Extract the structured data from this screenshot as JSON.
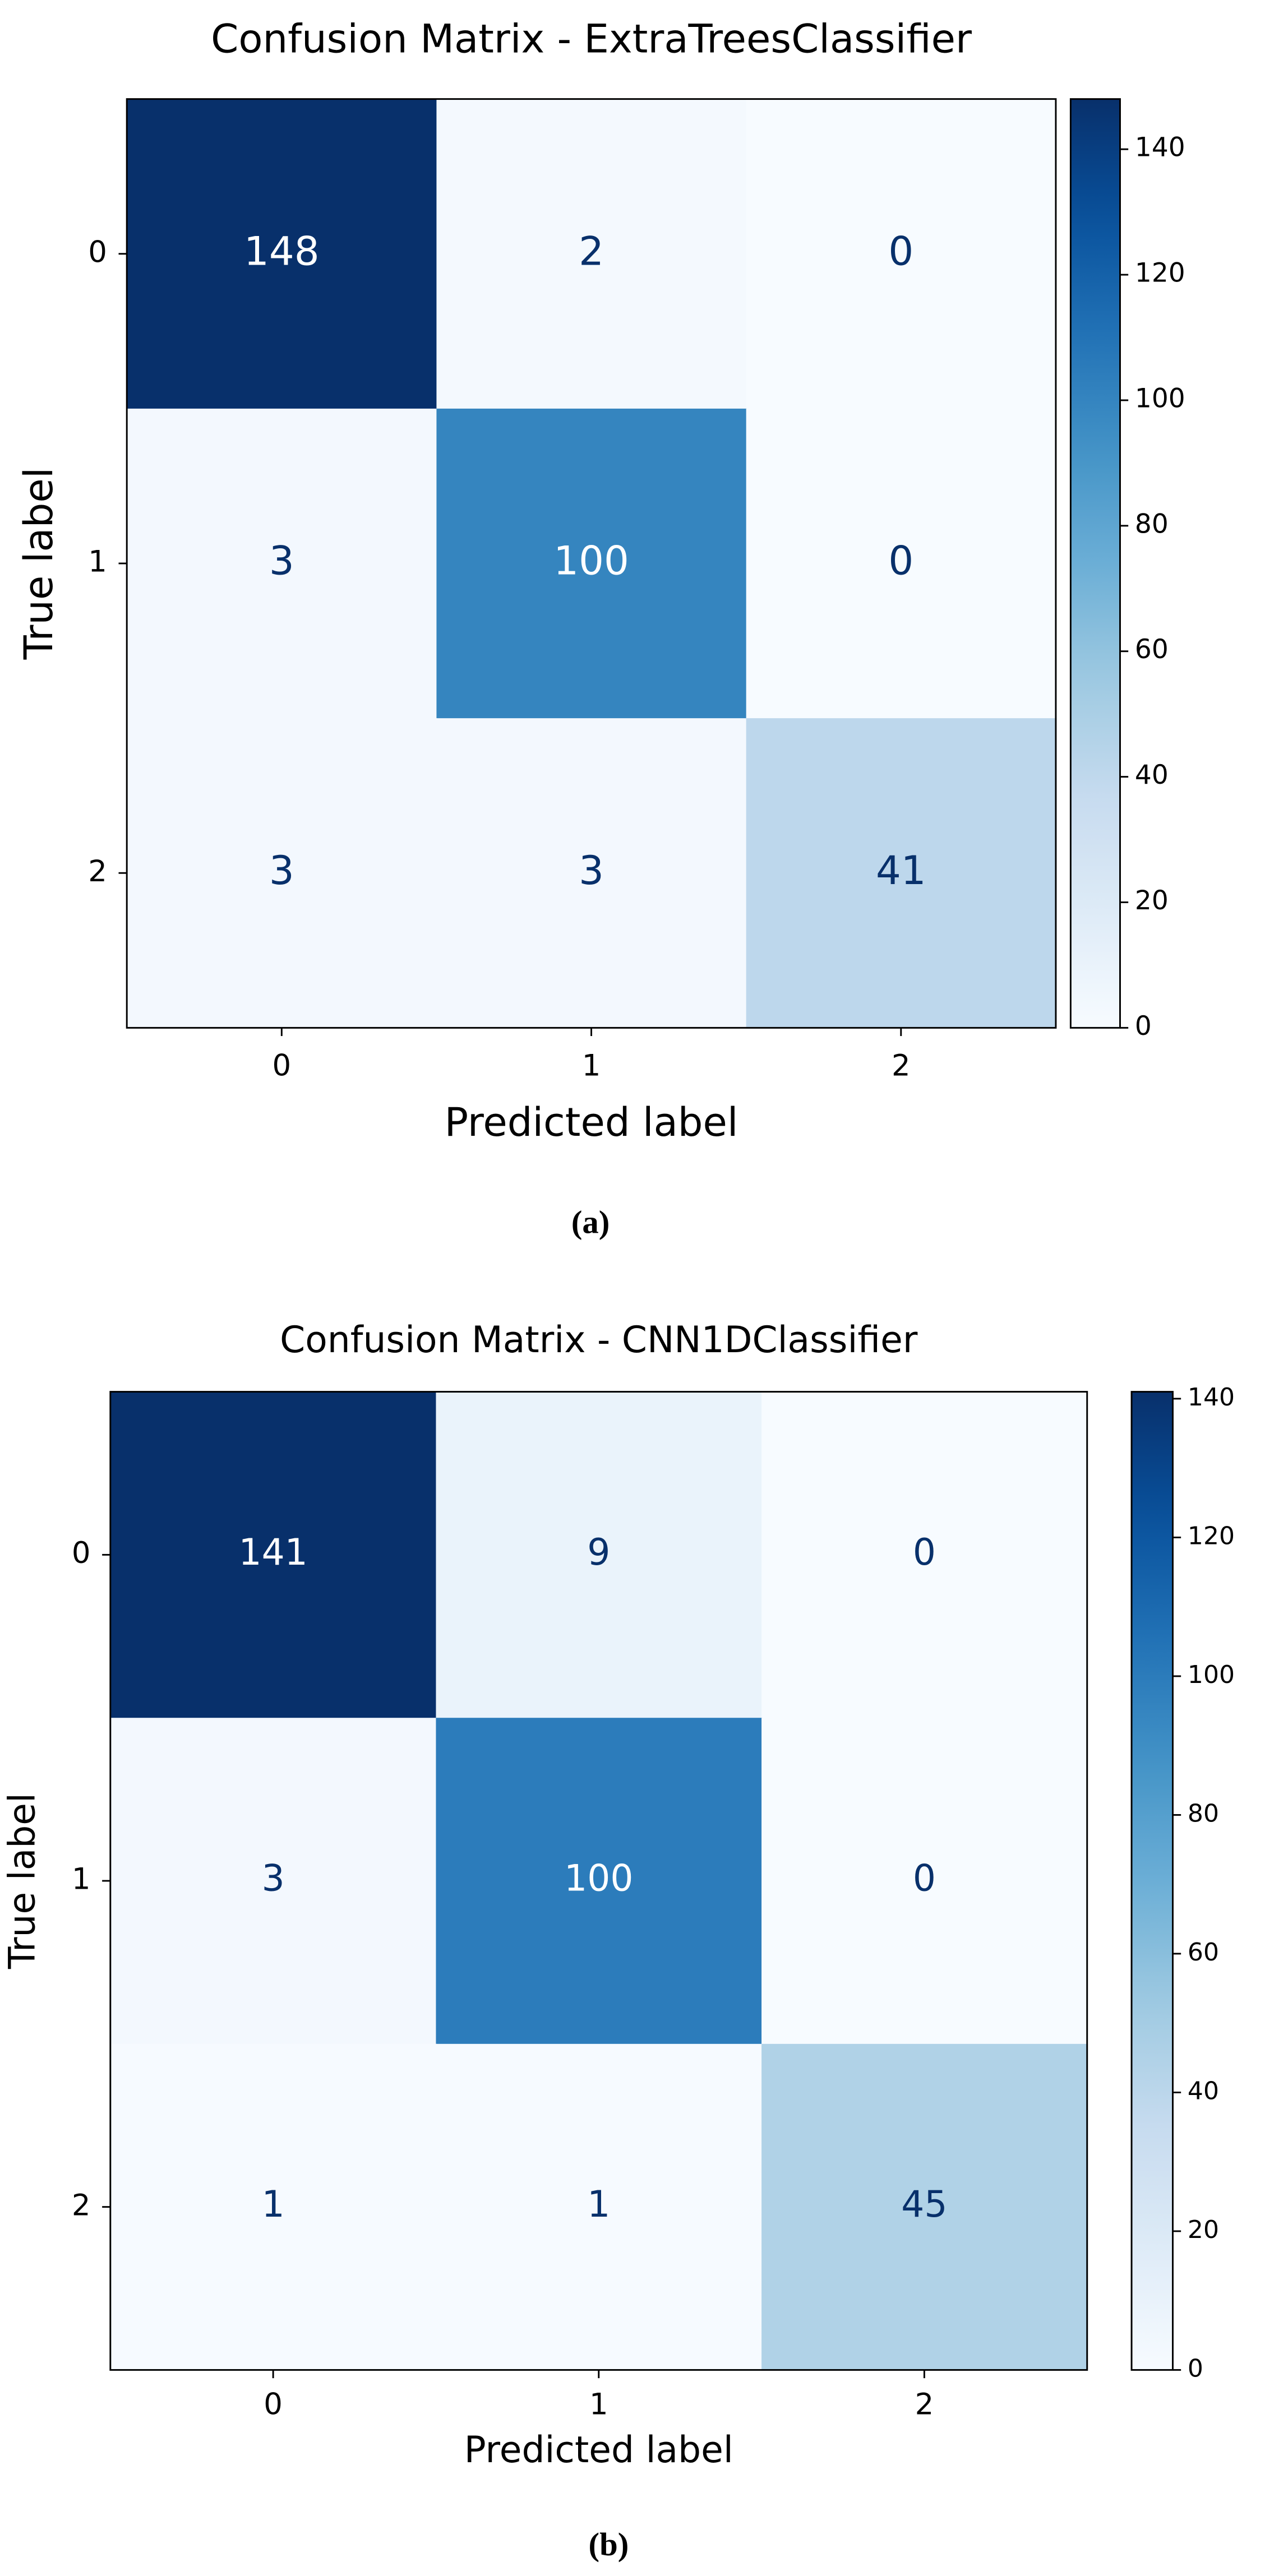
{
  "chart_data": [
    {
      "type": "heatmap",
      "title": "Confusion Matrix - ExtraTreesClassifier",
      "xlabel": "Predicted label",
      "ylabel": "True label",
      "x_categories": [
        "0",
        "1",
        "2"
      ],
      "y_categories": [
        "0",
        "1",
        "2"
      ],
      "values": [
        [
          148,
          2,
          0
        ],
        [
          3,
          100,
          0
        ],
        [
          3,
          3,
          41
        ]
      ],
      "colormap": "Blues",
      "clim": [
        0,
        148
      ],
      "cticks": [
        0,
        20,
        40,
        60,
        80,
        100,
        120,
        140
      ],
      "caption": "(a)"
    },
    {
      "type": "heatmap",
      "title": "Confusion Matrix - CNN1DClassifier",
      "xlabel": "Predicted label",
      "ylabel": "True label",
      "x_categories": [
        "0",
        "1",
        "2"
      ],
      "y_categories": [
        "0",
        "1",
        "2"
      ],
      "values": [
        [
          141,
          9,
          0
        ],
        [
          3,
          100,
          0
        ],
        [
          1,
          1,
          45
        ]
      ],
      "colormap": "Blues",
      "clim": [
        0,
        141
      ],
      "cticks": [
        0,
        20,
        40,
        60,
        80,
        100,
        120,
        140
      ],
      "caption": "(b)"
    }
  ]
}
